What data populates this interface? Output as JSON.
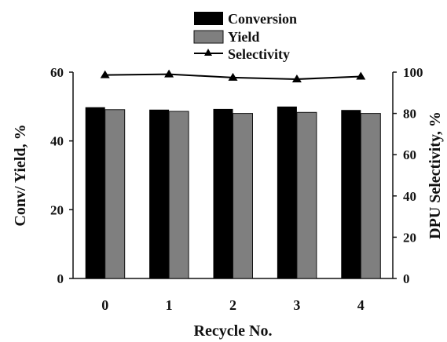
{
  "chart_data": {
    "type": "bar",
    "categories": [
      "0",
      "1",
      "2",
      "3",
      "4"
    ],
    "xlabel": "Recycle No.",
    "ylabel_left": "Conv/ Yield, %",
    "ylabel_right": "DPU Selectivity, %",
    "ylim_left": [
      0,
      60
    ],
    "ylim_right": [
      0,
      100
    ],
    "yticks_left": [
      "0",
      "20",
      "40",
      "60"
    ],
    "yticks_right": [
      "0",
      "20",
      "40",
      "60",
      "80",
      "100"
    ],
    "grid": false,
    "legend_position": "top",
    "series": [
      {
        "name": "Conversion",
        "type": "bar",
        "axis": "left",
        "color": "#000000",
        "values": [
          49.8,
          49.1,
          49.3,
          50.0,
          49.0
        ]
      },
      {
        "name": "Yield",
        "type": "bar",
        "axis": "left",
        "color": "#7f7f7f",
        "values": [
          49.1,
          48.6,
          48.0,
          48.3,
          48.0
        ]
      },
      {
        "name": "Selectivity",
        "type": "line",
        "axis": "right",
        "color": "#000000",
        "marker": "triangle",
        "values": [
          98.6,
          99.0,
          97.4,
          96.6,
          97.9
        ]
      }
    ]
  }
}
